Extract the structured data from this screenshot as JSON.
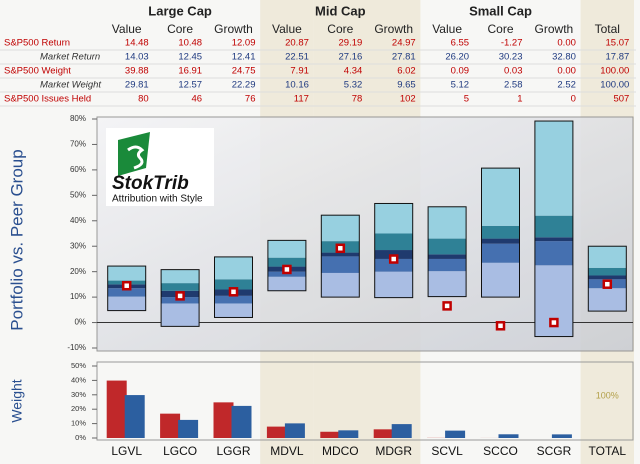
{
  "table": {
    "groups": [
      "Large Cap",
      "Mid Cap",
      "Small Cap"
    ],
    "columns": [
      "Value",
      "Core",
      "Growth",
      "Value",
      "Core",
      "Growth",
      "Value",
      "Core",
      "Growth",
      "Total"
    ],
    "rows": [
      {
        "label": "S&P500 Return",
        "values": [
          "14.48",
          "10.48",
          "12.09",
          "20.87",
          "29.19",
          "24.97",
          "6.55",
          "-1.27",
          "0.00",
          "15.07"
        ]
      },
      {
        "label": "Market Return",
        "values": [
          "14.03",
          "12.45",
          "12.41",
          "22.51",
          "27.16",
          "27.81",
          "26.20",
          "30.23",
          "32.80",
          "17.87"
        ]
      },
      {
        "label": "S&P500 Weight",
        "values": [
          "39.88",
          "16.91",
          "24.75",
          "7.91",
          "4.34",
          "6.02",
          "0.09",
          "0.03",
          "0.00",
          "100.00"
        ]
      },
      {
        "label": "Market Weight",
        "values": [
          "29.81",
          "12.57",
          "22.29",
          "10.16",
          "5.32",
          "9.65",
          "5.12",
          "2.58",
          "2.52",
          "100.00"
        ]
      },
      {
        "label": "S&P500 Issues Held",
        "values": [
          "80",
          "46",
          "76",
          "117",
          "78",
          "102",
          "5",
          "1",
          "0",
          "507"
        ]
      }
    ]
  },
  "logo": {
    "name": "StokTrib",
    "tagline": "Attribution with Style"
  },
  "chart_data": [
    {
      "type": "range-box",
      "ylabel": "Portfolio vs. Peer Group",
      "ylim": [
        -10,
        80
      ],
      "yticks": [
        {
          "value": -10,
          "label": "-10%"
        },
        {
          "value": 0,
          "label": "0%"
        },
        {
          "value": 10,
          "label": "10%"
        },
        {
          "value": 20,
          "label": "20%"
        },
        {
          "value": 30,
          "label": "30%"
        },
        {
          "value": 40,
          "label": "40%"
        },
        {
          "value": 50,
          "label": "50%"
        },
        {
          "value": 60,
          "label": "60%"
        },
        {
          "value": 70,
          "label": "70%"
        },
        {
          "value": 80,
          "label": "80%"
        }
      ],
      "boxes": [
        [
          4.7,
          10.2,
          13.5,
          15,
          16.5,
          22.2
        ],
        [
          -1.5,
          7.5,
          10,
          12.5,
          15.5,
          20.8
        ],
        [
          2,
          7.5,
          10.5,
          13,
          17,
          25.8
        ],
        [
          12.5,
          18,
          20,
          22,
          25.5,
          32.3
        ],
        [
          10,
          19.5,
          26,
          27.5,
          32,
          42.2
        ],
        [
          9.8,
          20,
          25,
          28.5,
          35,
          46.8
        ],
        [
          10.2,
          20.2,
          25,
          26.8,
          33,
          45.5
        ],
        [
          10,
          23.5,
          31,
          33,
          38,
          60.7
        ],
        [
          -5.5,
          22.5,
          32,
          33.5,
          42,
          79.2
        ],
        [
          4.5,
          13.5,
          17,
          18.5,
          21.5,
          30
        ]
      ],
      "band_colors": [
        "#a9bde3",
        "#4570b0",
        "#1f3a6e",
        "#2f8196",
        "#97d0e0"
      ],
      "marker_color": "#c00000"
    },
    {
      "type": "bar",
      "ylabel": "Weight",
      "categories": [
        "LGVL",
        "LGCO",
        "LGGR",
        "MDVL",
        "MDCO",
        "MDGR",
        "SCVL",
        "SCCO",
        "SCGR",
        "TOTAL"
      ],
      "ylim": [
        0,
        50
      ],
      "yticks": [
        {
          "value": 0,
          "label": "0%"
        },
        {
          "value": 10,
          "label": "10%"
        },
        {
          "value": 20,
          "label": "20%"
        },
        {
          "value": 30,
          "label": "30%"
        },
        {
          "value": 40,
          "label": "40%"
        },
        {
          "value": 50,
          "label": "50%"
        }
      ],
      "colors": [
        "#c0282a",
        "#2c5fa0"
      ],
      "annotation": "100%"
    }
  ]
}
